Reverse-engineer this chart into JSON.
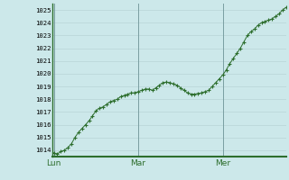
{
  "background_color": "#cce8ea",
  "plot_bg_color": "#cce8ea",
  "grid_color": "#b8d4d6",
  "line_color": "#2d6e2d",
  "marker_color": "#2d6e2d",
  "border_color": "#2d6e2d",
  "ylim": [
    1013.5,
    1025.5
  ],
  "yticks": [
    1014,
    1015,
    1016,
    1017,
    1018,
    1019,
    1020,
    1021,
    1022,
    1023,
    1024,
    1025
  ],
  "xtick_labels": [
    "Lun",
    "Mar",
    "Mer"
  ],
  "xtick_positions": [
    0,
    24,
    48
  ],
  "xlim": [
    -0.5,
    66
  ],
  "x_values": [
    0,
    1,
    2,
    3,
    4,
    5,
    6,
    7,
    8,
    9,
    10,
    11,
    12,
    13,
    14,
    15,
    16,
    17,
    18,
    19,
    20,
    21,
    22,
    23,
    24,
    25,
    26,
    27,
    28,
    29,
    30,
    31,
    32,
    33,
    34,
    35,
    36,
    37,
    38,
    39,
    40,
    41,
    42,
    43,
    44,
    45,
    46,
    47,
    48,
    49,
    50,
    51,
    52,
    53,
    54,
    55,
    56,
    57,
    58,
    59,
    60,
    61,
    62,
    63,
    64,
    65,
    66
  ],
  "y_values": [
    1013.8,
    1013.7,
    1013.9,
    1014.0,
    1014.2,
    1014.5,
    1015.0,
    1015.4,
    1015.7,
    1016.0,
    1016.3,
    1016.7,
    1017.1,
    1017.3,
    1017.4,
    1017.6,
    1017.8,
    1017.9,
    1018.0,
    1018.2,
    1018.3,
    1018.4,
    1018.5,
    1018.5,
    1018.6,
    1018.7,
    1018.8,
    1018.8,
    1018.7,
    1018.9,
    1019.1,
    1019.3,
    1019.35,
    1019.3,
    1019.2,
    1019.1,
    1018.9,
    1018.7,
    1018.5,
    1018.4,
    1018.4,
    1018.45,
    1018.5,
    1018.6,
    1018.7,
    1019.0,
    1019.3,
    1019.6,
    1019.9,
    1020.3,
    1020.8,
    1021.2,
    1021.6,
    1022.0,
    1022.5,
    1023.0,
    1023.3,
    1023.5,
    1023.8,
    1024.0,
    1024.1,
    1024.2,
    1024.3,
    1024.5,
    1024.7,
    1025.0,
    1025.2
  ]
}
